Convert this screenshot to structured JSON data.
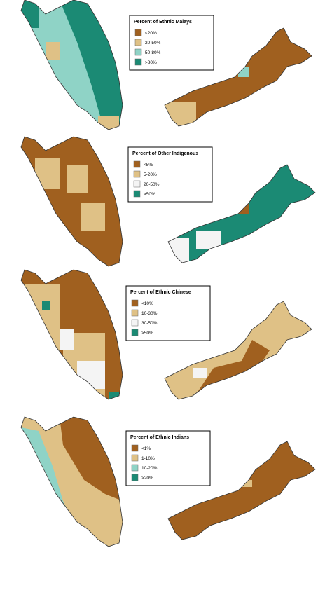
{
  "maps": [
    {
      "legend_title": "Percent of Ethnic Malays",
      "legend": [
        {
          "label": "<20%",
          "color": "#a0601f"
        },
        {
          "label": "20-50%",
          "color": "#dfc186"
        },
        {
          "label": "50-80%",
          "color": "#8fd3c6"
        },
        {
          "label": ">80%",
          "color": "#1b8a74"
        }
      ]
    },
    {
      "legend_title": "Percent of Other Indigenous",
      "legend": [
        {
          "label": "<5%",
          "color": "#a0601f"
        },
        {
          "label": "5-20%",
          "color": "#dfc186"
        },
        {
          "label": "20-50%",
          "color": "#f4f4f4"
        },
        {
          "label": ">50%",
          "color": "#1b8a74"
        }
      ]
    },
    {
      "legend_title": "Percent of Ethnic Chinese",
      "legend": [
        {
          "label": "<10%",
          "color": "#a0601f"
        },
        {
          "label": "10-30%",
          "color": "#dfc186"
        },
        {
          "label": "30-50%",
          "color": "#f4f4f4"
        },
        {
          "label": ">50%",
          "color": "#1b8a74"
        }
      ]
    },
    {
      "legend_title": "Percent of Ethnic Indians",
      "legend": [
        {
          "label": "<1%",
          "color": "#a0601f"
        },
        {
          "label": "1-10%",
          "color": "#dfc186"
        },
        {
          "label": "10-20%",
          "color": "#8fd3c6"
        },
        {
          "label": ">20%",
          "color": "#1b8a74"
        }
      ]
    }
  ]
}
